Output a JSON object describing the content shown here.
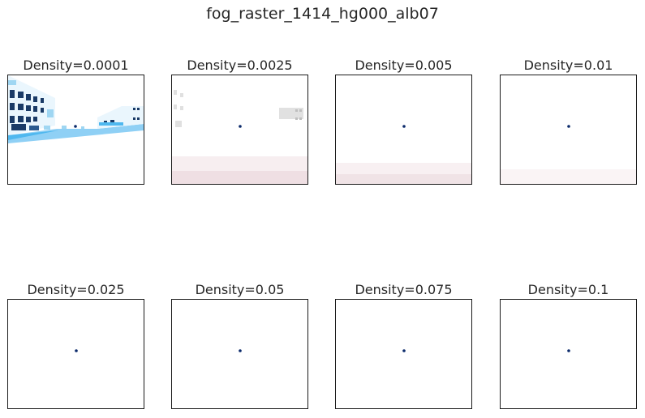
{
  "figure": {
    "title": "fog_raster_1414_hg000_alb07"
  },
  "panels": [
    {
      "label": "Density=0.0001",
      "density": 0.0001,
      "visibility": "clear"
    },
    {
      "label": "Density=0.0025",
      "density": 0.0025,
      "visibility": "faint"
    },
    {
      "label": "Density=0.005",
      "density": 0.005,
      "visibility": "ground-noise"
    },
    {
      "label": "Density=0.01",
      "density": 0.01,
      "visibility": "ground-noise-faint"
    },
    {
      "label": "Density=0.025",
      "density": 0.025,
      "visibility": "white"
    },
    {
      "label": "Density=0.05",
      "density": 0.05,
      "visibility": "white"
    },
    {
      "label": "Density=0.075",
      "density": 0.075,
      "visibility": "white"
    },
    {
      "label": "Density=0.1",
      "density": 0.1,
      "visibility": "white"
    }
  ],
  "colors": {
    "marker": "#0b2a6b",
    "building_dark": "#1a3a66",
    "building_light": "#9fd6f2",
    "road": "#4fb8ef",
    "noise": "#c9a8b0"
  }
}
